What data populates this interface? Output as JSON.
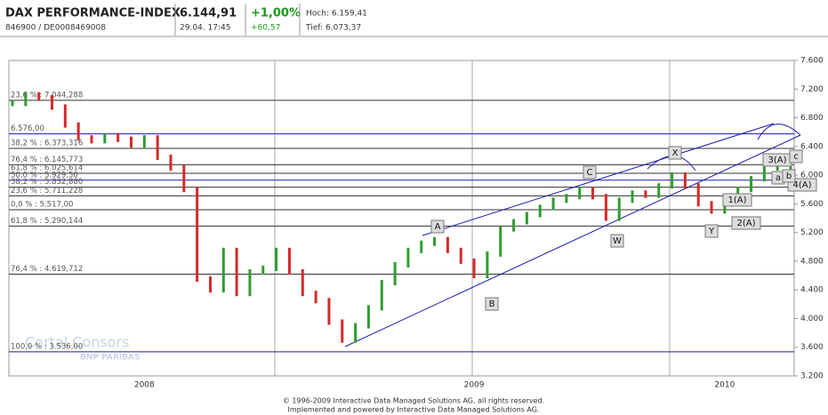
{
  "header": {
    "title": "DAX PERFORMANCE-INDEX",
    "price": "6.144,91",
    "change_pct": "+1,00%",
    "high": "Hoch: 6.159,41",
    "isin": "846900 / DE0008469008",
    "time": "29.04. 17:45",
    "change_abs": "+60,57",
    "low": "Tief: 6.073,37"
  },
  "chart_data": {
    "type": "bars",
    "categories": [
      null,
      null,
      null,
      null,
      null,
      null,
      null,
      null,
      null,
      null,
      "2008",
      null,
      null,
      null,
      null,
      null,
      null,
      null,
      null,
      null,
      null,
      null,
      null,
      null,
      null,
      null,
      null,
      null,
      null,
      null,
      null,
      null,
      null,
      null,
      null,
      "2009",
      null,
      null,
      null,
      null,
      null,
      null,
      null,
      null,
      null,
      null,
      null,
      null,
      null,
      null,
      null,
      null,
      null,
      null,
      "2010",
      null,
      null,
      null,
      null,
      null
    ],
    "values": [
      7000,
      7120,
      7080,
      6950,
      6700,
      6520,
      6480,
      6550,
      6500,
      6420,
      6520,
      6250,
      6100,
      5800,
      4550,
      4400,
      4950,
      4350,
      4650,
      4700,
      4950,
      4650,
      4350,
      4250,
      3950,
      3700,
      3900,
      4150,
      4500,
      4750,
      4950,
      5050,
      5100,
      4950,
      4800,
      4600,
      4900,
      5250,
      5350,
      5450,
      5550,
      5650,
      5700,
      5800,
      5700,
      5400,
      5650,
      5750,
      5720,
      5850,
      6000,
      5850,
      5600,
      5500,
      5650,
      5800,
      5950,
      6100,
      6120,
      6144.91
    ],
    "up_color": "#2e9e2e",
    "down_color": "#d42a2a",
    "ylim": [
      3200,
      7600
    ],
    "yticks": [
      {
        "value": 7600,
        "label": "7.600"
      },
      {
        "value": 7200,
        "label": "7.200"
      },
      {
        "value": 6800,
        "label": "6.800"
      },
      {
        "value": 6400,
        "label": "6.400"
      },
      {
        "value": 6000,
        "label": "6.000"
      },
      {
        "value": 5600,
        "label": "5.600"
      },
      {
        "value": 5200,
        "label": "5.200"
      },
      {
        "value": 4800,
        "label": "4.800"
      },
      {
        "value": 4400,
        "label": "4.400"
      },
      {
        "value": 4000,
        "label": "4.000"
      },
      {
        "value": 3600,
        "label": "3.600"
      },
      {
        "value": 3200,
        "label": "3.200"
      }
    ],
    "levels": [
      {
        "label": "23,6 % : 7.044,288",
        "value": 7044.288,
        "color": "#333333"
      },
      {
        "label": "6.576,00",
        "value": 6576,
        "color": "#1a1ab0"
      },
      {
        "label": "38,2 % : 6.373,316",
        "value": 6373.316,
        "color": "#333333"
      },
      {
        "label": "76,4 % : 6.145,773",
        "value": 6145.773,
        "color": "#333333"
      },
      {
        "label": "61,8 % : 6.025,614",
        "value": 6025.614,
        "color": "#333333"
      },
      {
        "label": "50,0 % : 5.929,50",
        "value": 5929.5,
        "color": "#1a1ab0"
      },
      {
        "label": "38,2 % : 5.832,880",
        "value": 5832.88,
        "color": "#333333"
      },
      {
        "label": "23,6 % : 5.711,228",
        "value": 5711.228,
        "color": "#333333"
      },
      {
        "label": "0,0 % : 5.517,00",
        "value": 5517,
        "color": "#333333"
      },
      {
        "label": "61,8 % : 5.290,144",
        "value": 5290.144,
        "color": "#333333"
      },
      {
        "label": "76,4 % : 4.619,712",
        "value": 4619.712,
        "color": "#333333"
      },
      {
        "label": "100,0 % : 3.536,00",
        "value": 3536,
        "color": "#1a1ab0"
      }
    ]
  },
  "waves": [
    "A",
    "B",
    "C",
    "W",
    "X",
    "Y",
    "1(A)",
    "2(A)",
    "3(A)",
    "4(A)",
    "a",
    "b",
    "c"
  ],
  "watermark": [
    "Cortal Consors",
    "BNP PARIBAS"
  ],
  "footer": [
    "© 1996-2009 Interactive Data Managed Solutions AG, all rights reserved.",
    "Implemented and powered by Interactive Data Managed Solutions AG."
  ]
}
